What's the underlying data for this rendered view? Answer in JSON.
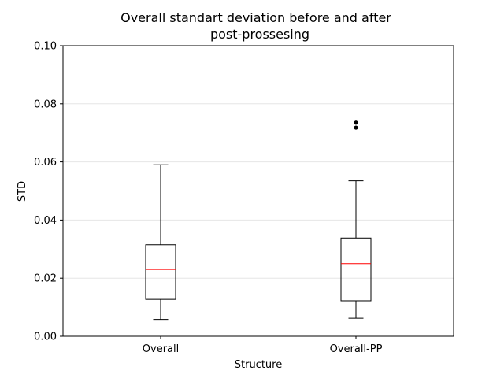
{
  "chart_data": {
    "type": "box",
    "title_lines": [
      "Overall standart deviation before and after",
      "post-prossesing"
    ],
    "xlabel": "Structure",
    "ylabel": "STD",
    "ylim": [
      0.0,
      0.1
    ],
    "yticks": [
      0.0,
      0.02,
      0.04,
      0.06,
      0.08,
      0.1
    ],
    "ytick_labels": [
      "0.00",
      "0.02",
      "0.04",
      "0.06",
      "0.08",
      "0.10"
    ],
    "grid": "horizontal",
    "categories": [
      "Overall",
      "Overall-PP"
    ],
    "boxes": [
      {
        "category": "Overall",
        "whisker_low": 0.0058,
        "q1": 0.0127,
        "median": 0.023,
        "q3": 0.0315,
        "whisker_high": 0.059,
        "outliers": []
      },
      {
        "category": "Overall-PP",
        "whisker_low": 0.0062,
        "q1": 0.0122,
        "median": 0.025,
        "q3": 0.0338,
        "whisker_high": 0.0535,
        "outliers": [
          0.0718,
          0.0735
        ]
      }
    ],
    "colors": {
      "box": "#000000",
      "median": "#ff0000",
      "grid": "#e6e6e6",
      "outlier": "#000000"
    }
  }
}
